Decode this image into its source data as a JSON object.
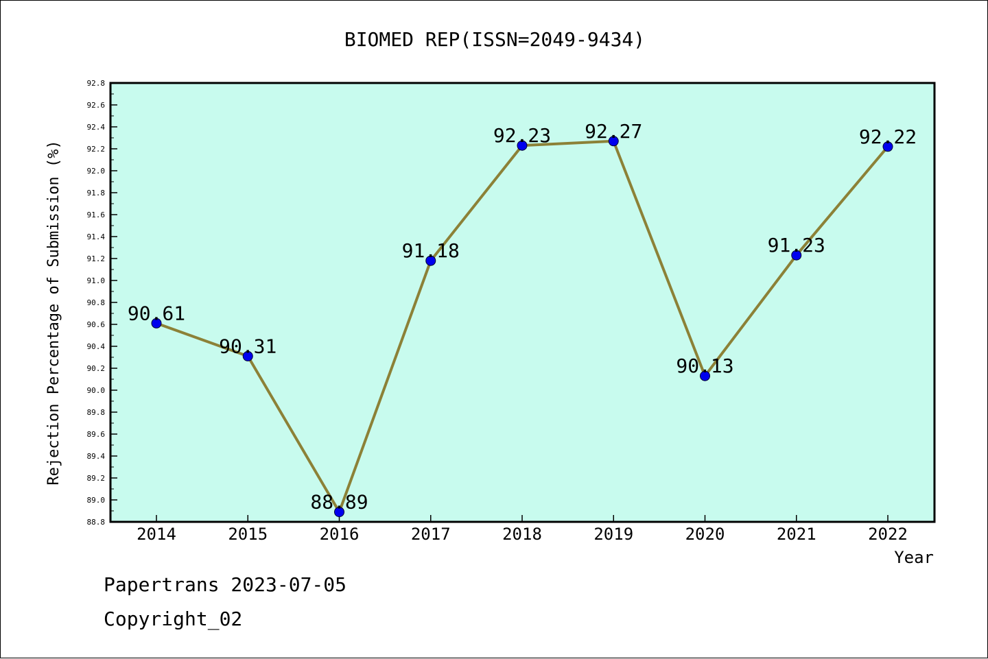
{
  "chart_data": {
    "type": "line",
    "title": "BIOMED REP(ISSN=2049-9434)",
    "xlabel": "Year",
    "ylabel": "Rejection Percentage of Submission (%)",
    "categories": [
      "2014",
      "2015",
      "2016",
      "2017",
      "2018",
      "2019",
      "2020",
      "2021",
      "2022"
    ],
    "series": [
      {
        "values": [
          90.61,
          90.31,
          88.89,
          91.18,
          92.23,
          92.27,
          90.13,
          91.23,
          92.22
        ]
      }
    ],
    "data_labels": [
      "90.61",
      "90.31",
      "88.89",
      "91.18",
      "92.23",
      "92.27",
      "90.13",
      "91.23",
      "92.22"
    ],
    "ylim": [
      88.8,
      92.8
    ],
    "y_ticks": [
      "88.8",
      "89.0",
      "89.2",
      "89.4",
      "89.6",
      "89.8",
      "90.0",
      "90.2",
      "90.4",
      "90.6",
      "90.8",
      "91.0",
      "91.2",
      "91.4",
      "91.6",
      "91.8",
      "92.0",
      "92.2",
      "92.4",
      "92.6",
      "92.8"
    ],
    "grid": false,
    "colors": {
      "plot_background": "#c8fbee",
      "line": "#8c8137",
      "marker": "#0000ee"
    }
  },
  "footer": {
    "line1": "Papertrans 2023-07-05",
    "line2": "Copyright_02"
  }
}
